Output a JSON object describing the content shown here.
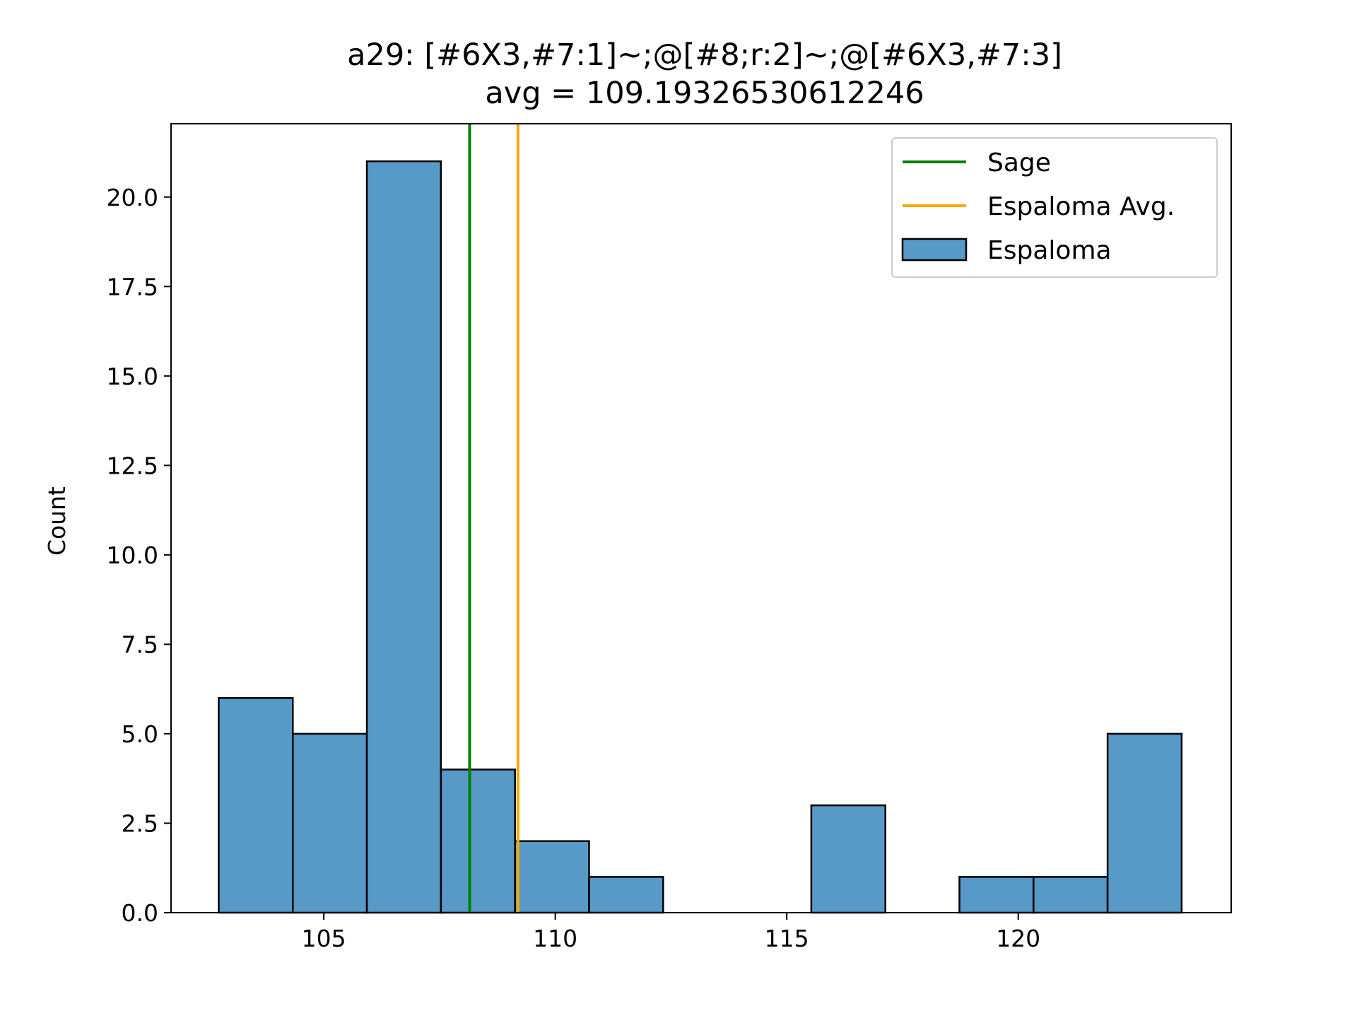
{
  "chart_data": {
    "type": "bar",
    "title_line1": "a29: [#6X3,#7:1]~;@[#8;r:2]~;@[#6X3,#7:3]",
    "title_line2": "avg = 109.19326530612246",
    "xlabel": "",
    "ylabel": "Count",
    "xlim": [
      101.7,
      124.6
    ],
    "ylim": [
      0,
      22.05
    ],
    "xticks": [
      105,
      110,
      115,
      120
    ],
    "xtick_labels": [
      "105",
      "110",
      "115",
      "120"
    ],
    "yticks": [
      0,
      2.5,
      5,
      7.5,
      10,
      12.5,
      15,
      17.5,
      20
    ],
    "ytick_labels": [
      "0.0",
      "2.5",
      "5.0",
      "7.5",
      "10.0",
      "12.5",
      "15.0",
      "17.5",
      "20.0"
    ],
    "grid": false,
    "legend_position": "top-right",
    "series": [
      {
        "name": "Espaloma",
        "color": "#5799c7",
        "edge_color": "#000000",
        "bins": [
          {
            "x0": 102.73,
            "x1": 104.33,
            "count": 6
          },
          {
            "x0": 104.33,
            "x1": 105.93,
            "count": 5
          },
          {
            "x0": 105.93,
            "x1": 107.53,
            "count": 21
          },
          {
            "x0": 107.53,
            "x1": 109.13,
            "count": 4
          },
          {
            "x0": 109.13,
            "x1": 110.73,
            "count": 2
          },
          {
            "x0": 110.73,
            "x1": 112.33,
            "count": 1
          },
          {
            "x0": 112.33,
            "x1": 113.93,
            "count": 0
          },
          {
            "x0": 113.93,
            "x1": 115.53,
            "count": 0
          },
          {
            "x0": 115.53,
            "x1": 117.13,
            "count": 3
          },
          {
            "x0": 117.13,
            "x1": 118.73,
            "count": 0
          },
          {
            "x0": 118.73,
            "x1": 120.33,
            "count": 1
          },
          {
            "x0": 120.33,
            "x1": 121.93,
            "count": 1
          },
          {
            "x0": 121.93,
            "x1": 123.53,
            "count": 5
          }
        ]
      }
    ],
    "vlines": [
      {
        "name": "Sage",
        "x": 108.15,
        "color": "#008000"
      },
      {
        "name": "Espaloma Avg.",
        "x": 109.19326530612246,
        "color": "#ffa500"
      }
    ],
    "legend": [
      {
        "label": "Sage",
        "kind": "line",
        "color": "#008000"
      },
      {
        "label": "Espaloma Avg.",
        "kind": "line",
        "color": "#ffa500"
      },
      {
        "label": "Espaloma",
        "kind": "patch",
        "color": "#5799c7"
      }
    ]
  }
}
